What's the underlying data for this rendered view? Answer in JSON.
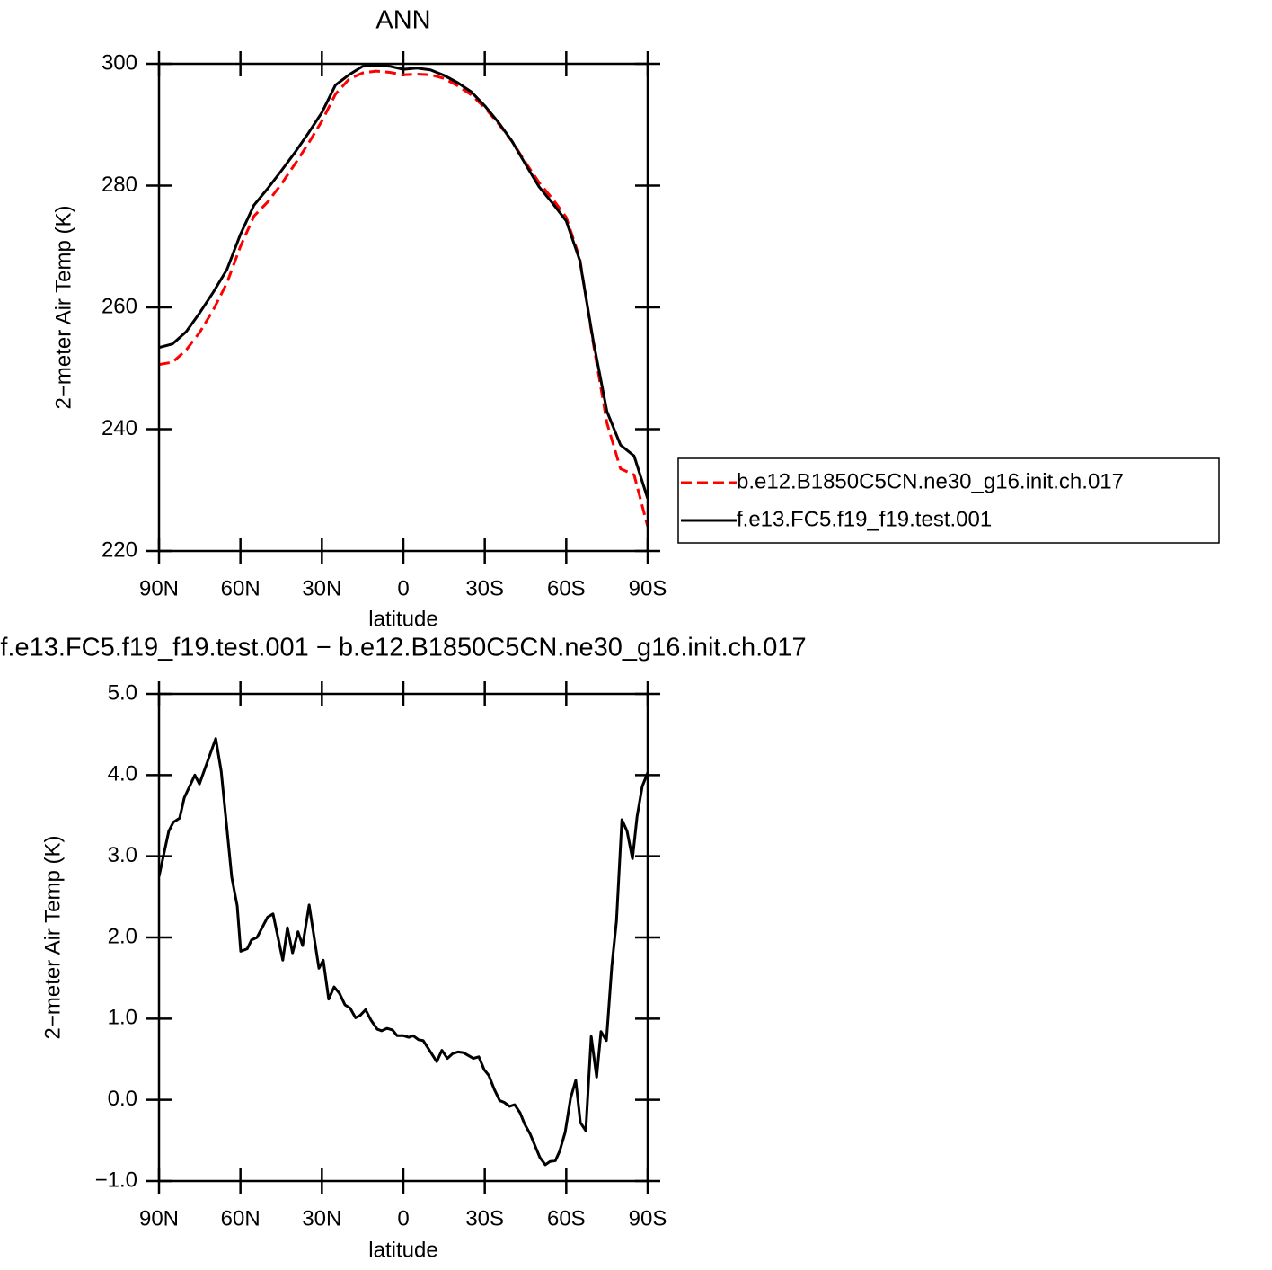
{
  "chart_data": [
    {
      "type": "line",
      "title": "ANN",
      "xlabel": "latitude",
      "ylabel": "2−meter Air Temp (K)",
      "x": [
        90,
        85,
        80,
        75,
        70,
        65,
        60,
        55,
        50,
        45,
        40,
        35,
        30,
        25,
        20,
        15,
        10,
        5,
        0,
        -5,
        -10,
        -15,
        -20,
        -25,
        -30,
        -35,
        -40,
        -45,
        -50,
        -55,
        -60,
        -65,
        -70,
        -75,
        -80,
        -85,
        -90
      ],
      "series": [
        {
          "name": "b.e12.B1850C5CN.ne30_g16.init.ch.017",
          "color": "#ff0000",
          "line_style": "dashed",
          "values": [
            250.6,
            251,
            253,
            255.9,
            259.6,
            264,
            270,
            275,
            277.3,
            280.2,
            283.5,
            286.9,
            290.6,
            295,
            297.5,
            298.5,
            298.8,
            298.6,
            298.2,
            298.3,
            298.2,
            297.6,
            296.4,
            294.9,
            292.8,
            290.2,
            287.3,
            283.8,
            280.5,
            277.8,
            274.8,
            268,
            254,
            241,
            233.5,
            232.5,
            224
          ]
        },
        {
          "name": "f.e13.FC5.f19_f19.test.001",
          "color": "#000000",
          "line_style": "solid",
          "values": [
            253.4,
            254,
            256,
            259.1,
            262.5,
            266.2,
            272,
            276.8,
            279.5,
            282.4,
            285.4,
            288.6,
            292,
            296.5,
            298.2,
            299.6,
            299.8,
            299.6,
            299.1,
            299.3,
            299,
            298.1,
            296.9,
            295.4,
            293.1,
            290.4,
            287.3,
            283.5,
            279.8,
            277.1,
            274.2,
            267.7,
            254.4,
            242.9,
            237.4,
            235.6,
            228.6
          ]
        }
      ],
      "xlim": [
        90,
        -90
      ],
      "xticks": [
        {
          "value": 90,
          "label": "90N"
        },
        {
          "value": 60,
          "label": "60N"
        },
        {
          "value": 30,
          "label": "30N"
        },
        0,
        {
          "value": -30,
          "label": "30S"
        },
        {
          "value": -60,
          "label": "60S"
        },
        {
          "value": -90,
          "label": "90S"
        }
      ],
      "ylim": [
        220,
        300
      ],
      "yticks": [
        220,
        240,
        260,
        280,
        300
      ],
      "legend": "right"
    },
    {
      "type": "line",
      "title": "f.e13.FC5.f19_f19.test.001 − b.e12.B1850C5CN.ne30_g16.init.ch.017",
      "xlabel": "latitude",
      "ylabel": "2−meter Air Temp (K)",
      "x": [
        90,
        86.4,
        84.7,
        82.4,
        80.7,
        76.8,
        75.1,
        69.1,
        67.1,
        63.2,
        61.2,
        59.9,
        57.5,
        55.9,
        53.9,
        50,
        48,
        44.4,
        42.7,
        40.8,
        38.8,
        37.1,
        34.7,
        31.1,
        29.5,
        27.5,
        25.5,
        23.5,
        21.5,
        19.6,
        17.6,
        15.9,
        13.9,
        11.9,
        9.6,
        8,
        6,
        4,
        2.3,
        0,
        -2,
        -3.6,
        -5.6,
        -7.3,
        -12.3,
        -14.2,
        -16.2,
        -18.2,
        -20.2,
        -22.2,
        -25.8,
        -27.8,
        -29.8,
        -31.5,
        -33.5,
        -35.5,
        -37.1,
        -39.1,
        -41,
        -43,
        -44.7,
        -46.7,
        -50.3,
        -52.3,
        -54,
        -56,
        -57.6,
        -59.6,
        -61.6,
        -63.5,
        -65.2,
        -67.2,
        -69.2,
        -71.2,
        -72.8,
        -74.8,
        -76.8,
        -78.5,
        -80.5,
        -82.4,
        -84.4,
        -86.1,
        -88,
        -90
      ],
      "series": [
        {
          "color": "#000000",
          "line_style": "solid",
          "values": [
            2.75,
            3.31,
            3.42,
            3.47,
            3.72,
            4.0,
            3.89,
            4.45,
            4.05,
            2.74,
            2.39,
            1.83,
            1.86,
            1.97,
            2.0,
            2.25,
            2.29,
            1.72,
            2.12,
            1.81,
            2.07,
            1.9,
            2.4,
            1.62,
            1.72,
            1.24,
            1.39,
            1.31,
            1.17,
            1.13,
            1.01,
            1.04,
            1.11,
            0.98,
            0.87,
            0.85,
            0.88,
            0.86,
            0.79,
            0.79,
            0.77,
            0.79,
            0.74,
            0.73,
            0.47,
            0.61,
            0.51,
            0.57,
            0.59,
            0.58,
            0.51,
            0.53,
            0.37,
            0.3,
            0.13,
            -0.01,
            -0.03,
            -0.08,
            -0.06,
            -0.16,
            -0.3,
            -0.42,
            -0.71,
            -0.8,
            -0.76,
            -0.75,
            -0.63,
            -0.4,
            0.02,
            0.24,
            -0.28,
            -0.38,
            0.78,
            0.28,
            0.84,
            0.73,
            1.65,
            2.2,
            3.45,
            3.31,
            2.97,
            3.49,
            3.86,
            4.03
          ]
        }
      ],
      "xlim": [
        90,
        -90
      ],
      "xticks": [
        {
          "value": 90,
          "label": "90N"
        },
        {
          "value": 60,
          "label": "60N"
        },
        {
          "value": 30,
          "label": "30N"
        },
        0,
        {
          "value": -30,
          "label": "30S"
        },
        {
          "value": -60,
          "label": "60S"
        },
        {
          "value": -90,
          "label": "90S"
        }
      ],
      "ylim": [
        -1,
        5
      ],
      "yticks": [
        {
          "value": -1,
          "label": "−1.0"
        },
        {
          "value": 0,
          "label": "0.0"
        },
        {
          "value": 1,
          "label": "1.0"
        },
        {
          "value": 2,
          "label": "2.0"
        },
        {
          "value": 3,
          "label": "3.0"
        },
        {
          "value": 4,
          "label": "4.0"
        },
        {
          "value": 5,
          "label": "5.0"
        }
      ]
    }
  ]
}
